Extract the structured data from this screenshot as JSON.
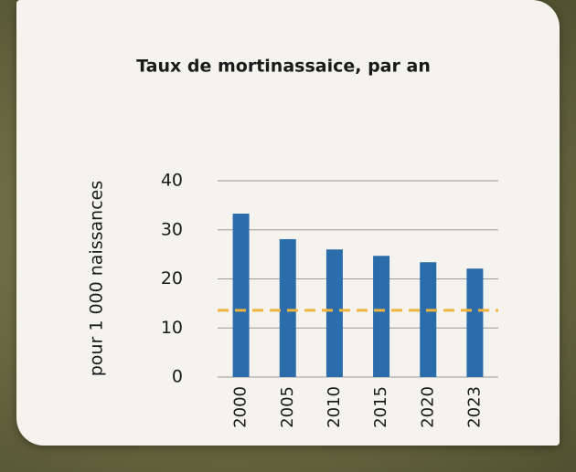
{
  "chart_data": {
    "type": "bar",
    "title": "Taux de mortinassaice, par an",
    "y_label": "pour 1 000 naissances",
    "categories": [
      "2000",
      "2005",
      "2010",
      "2015",
      "2020",
      "2023"
    ],
    "values": [
      33.3,
      28.1,
      26.0,
      24.7,
      23.4,
      22.1
    ],
    "color": "#2b6cab",
    "reference_line": 13.6,
    "reference_color": "#f0b43c",
    "ylim": [
      0,
      40
    ],
    "yticks": [
      0,
      10,
      20,
      30,
      40
    ],
    "grid": true
  }
}
